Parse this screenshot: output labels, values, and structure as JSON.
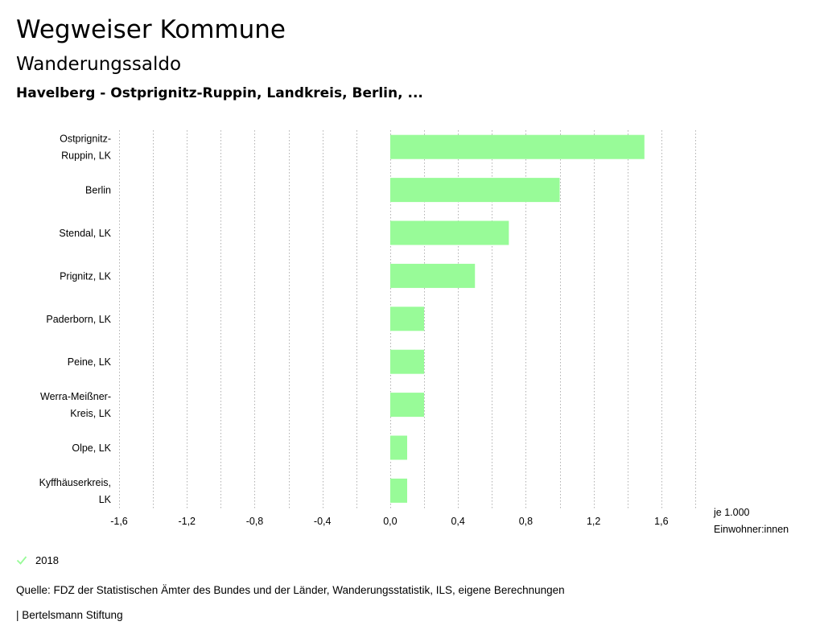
{
  "header": {
    "title": "Wegweiser Kommune",
    "subtitle": "Wanderungssaldo",
    "region": "Havelberg - Ostprignitz-Ruppin, Landkreis, Berlin, ..."
  },
  "chart_data": {
    "type": "bar",
    "orientation": "horizontal",
    "categories": [
      [
        "Ostprignitz-",
        "Ruppin, LK"
      ],
      [
        "Berlin"
      ],
      [
        "Stendal, LK"
      ],
      [
        "Prignitz, LK"
      ],
      [
        "Paderborn, LK"
      ],
      [
        "Peine, LK"
      ],
      [
        "Werra-Meißner-",
        "Kreis, LK"
      ],
      [
        "Olpe, LK"
      ],
      [
        "Kyffhäuserkreis,",
        "LK"
      ]
    ],
    "series": [
      {
        "name": "2018",
        "values": [
          1.5,
          1.0,
          0.7,
          0.5,
          0.2,
          0.2,
          0.2,
          0.1,
          0.1
        ]
      }
    ],
    "xlim": [
      -1.6,
      1.8
    ],
    "ticks": [
      -1.6,
      -1.2,
      -0.8,
      -0.4,
      0.0,
      0.4,
      0.8,
      1.2,
      1.6
    ],
    "tick_labels": [
      "-1,6",
      "-1,2",
      "-0,8",
      "-0,4",
      "0,0",
      "0,4",
      "0,8",
      "1,2",
      "1,6"
    ],
    "grid_step": 0.2,
    "unit_label": [
      "je 1.000",
      "Einwohner:innen"
    ],
    "bar_color": "#98fb98",
    "grid_color": "#b0b0b0"
  },
  "legend": {
    "label": "2018"
  },
  "footer": {
    "source": "Quelle: FDZ der Statistischen Ämter des Bundes und der Länder, Wanderungsstatistik, ILS, eigene Berechnungen",
    "publisher": "| Bertelsmann Stiftung"
  }
}
